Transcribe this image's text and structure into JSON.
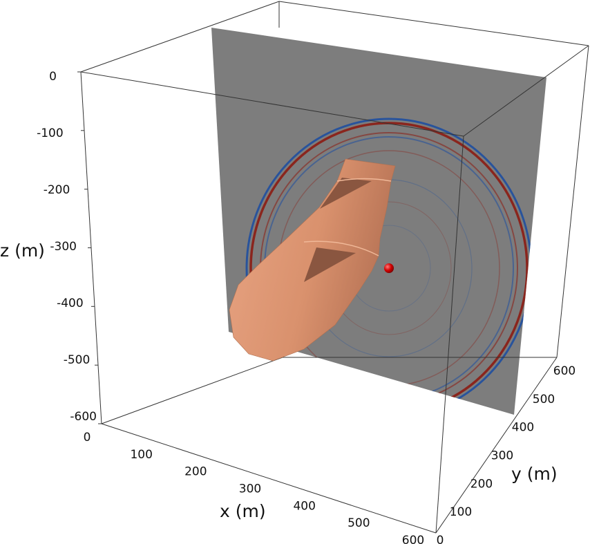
{
  "chart_data": {
    "type": "3d-volume",
    "axes": {
      "x": {
        "label": "x (m)",
        "ticks": [
          "0",
          "100",
          "200",
          "300",
          "400",
          "500",
          "600"
        ],
        "range": [
          0,
          600
        ]
      },
      "y": {
        "label": "y (m)",
        "ticks": [
          "0",
          "100",
          "200",
          "300",
          "400",
          "500",
          "600"
        ],
        "range": [
          0,
          600
        ]
      },
      "z": {
        "label": "z (m)",
        "ticks": [
          "0",
          "-100",
          "-200",
          "-300",
          "-400",
          "-500",
          "-600"
        ],
        "range": [
          -600,
          0
        ]
      }
    },
    "bounding_box": true,
    "grid": false,
    "slice": {
      "plane": "x-z",
      "y": 300,
      "background_color": "#7d7d7d"
    },
    "wavefield_colors": {
      "positive": "#8c1c13",
      "negative": "#1f4fa0"
    },
    "body": {
      "color": "#d9916d"
    },
    "source": {
      "x": 300,
      "y": 300,
      "z": -300,
      "color": "#d40000"
    }
  }
}
